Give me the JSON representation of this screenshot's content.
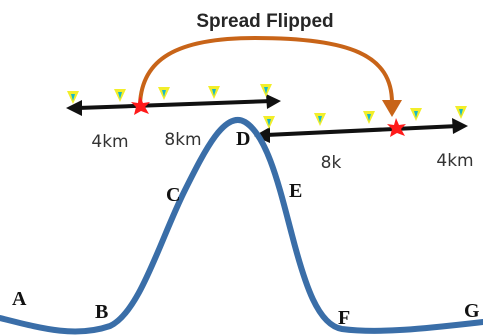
{
  "title": "Spread Flipped",
  "distances": {
    "left_outer": "4km",
    "left_inner": "8km",
    "right_inner": "8k",
    "right_outer": "4km"
  },
  "points": [
    "A",
    "B",
    "C",
    "D",
    "E",
    "F",
    "G"
  ],
  "colors": {
    "curve": "#3a6ea8",
    "arrow": "#c86418",
    "line": "#111111",
    "star": "#ff1a1a",
    "marker_yellow": "#f2ee2a",
    "marker_cyan": "#18b8c8"
  }
}
